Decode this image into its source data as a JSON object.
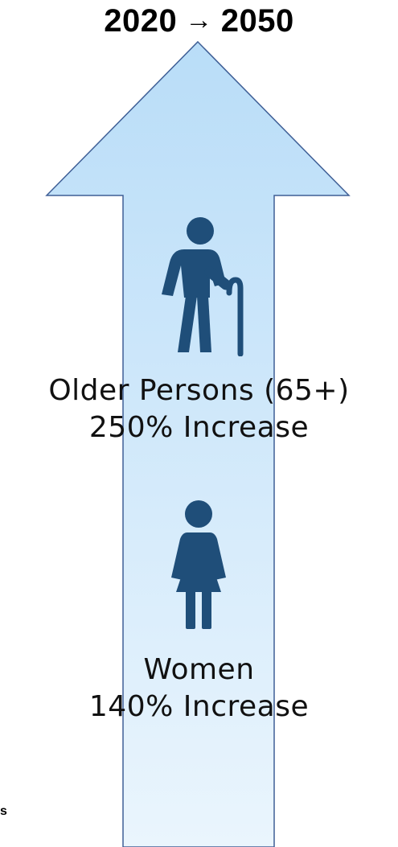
{
  "header": {
    "year_start": "2020",
    "arrow_symbol": "→",
    "year_end": "2050"
  },
  "groups": [
    {
      "icon": "elderly-person-icon",
      "label": "Older Persons (65+)",
      "change": "250% Increase",
      "increase_percent": 250
    },
    {
      "icon": "woman-icon",
      "label": "Women",
      "change": "140% Increase",
      "increase_percent": 140
    }
  ],
  "side_note": "s",
  "colors": {
    "arrow_fill_top": "#b9ddf8",
    "arrow_fill_bottom": "#eaf5fd",
    "arrow_stroke": "#3f5f96",
    "icon": "#1f4e79"
  }
}
